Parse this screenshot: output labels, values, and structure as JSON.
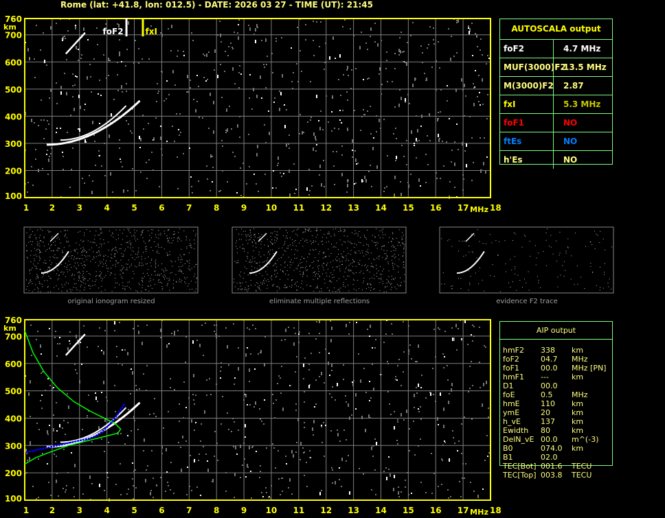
{
  "header": {
    "title": "Rome (lat: +41.8, lon: 012.5) - DATE: 2026 03 27 - TIME (UT): 21:45"
  },
  "ionogram": {
    "y_ticks": [
      "760",
      "700",
      "600",
      "500",
      "400",
      "300",
      "200",
      "100"
    ],
    "y_unit": "km",
    "x_ticks": [
      "1",
      "2",
      "3",
      "4",
      "5",
      "6",
      "7",
      "8",
      "9",
      "10",
      "11",
      "12",
      "13",
      "14",
      "15",
      "16",
      "17",
      "18"
    ],
    "x_unit": "MHz",
    "x_range": [
      1,
      18
    ],
    "y_range": [
      100,
      760
    ],
    "markers": {
      "foF2_label": "foF2",
      "foF2_value": 4.7,
      "fxI_label": "fxI",
      "fxI_value": 5.3
    }
  },
  "thumbnails": [
    {
      "caption": "original ionogram resized"
    },
    {
      "caption": "eliminate multiple reflections"
    },
    {
      "caption": "evidence F2 trace"
    }
  ],
  "autoscala": {
    "title": "AUTOSCALA output",
    "rows": [
      {
        "key": "foF2",
        "value": "4.7 MHz",
        "color": "#ffffff",
        "vcolor": "#ffffff"
      },
      {
        "key": "MUF(3000)F2",
        "value": "13.5 MHz",
        "color": "#ffff80",
        "vcolor": "#ffff80"
      },
      {
        "key": "M(3000)F2",
        "value": "2.87",
        "color": "#ffff80",
        "vcolor": "#ffff80"
      },
      {
        "key": "fxI",
        "value": "5.3 MHz",
        "color": "#ffff00",
        "vcolor": "#c8c800"
      },
      {
        "key": "foF1",
        "value": "NO",
        "color": "#ff0000",
        "vcolor": "#ff0000"
      },
      {
        "key": "ftEs",
        "value": "NO",
        "color": "#0080ff",
        "vcolor": "#0080ff"
      },
      {
        "key": "h'Es",
        "value": "NO",
        "color": "#ffff80",
        "vcolor": "#ffff80"
      }
    ]
  },
  "aip": {
    "title": "AIP output",
    "rows": [
      [
        "hmF2",
        "338",
        "km"
      ],
      [
        "foF2",
        "04.7",
        "MHz"
      ],
      [
        "foF1",
        "00.0",
        "MHz   [PN]"
      ],
      [
        "hmF1",
        "---",
        "km"
      ],
      [
        "D1",
        "00.0",
        ""
      ],
      [
        "foE",
        "0.5",
        "MHz"
      ],
      [
        "hmE",
        "110",
        "km"
      ],
      [
        "ymE",
        "20",
        "km"
      ],
      [
        "h_vE",
        "137",
        "km"
      ],
      [
        "Ewidth",
        "80",
        "km"
      ],
      [
        "DelN_vE",
        "00.0",
        "m^(-3)"
      ],
      [
        "B0",
        "074.0",
        "km"
      ],
      [
        "B1",
        "02.0",
        ""
      ],
      [
        "TEC[Bot]",
        "001.6",
        "TECU"
      ],
      [
        "TEC[Top]",
        "003.8",
        "TECU"
      ]
    ]
  },
  "colors": {
    "axis": "#ffff00",
    "grid": "#808080",
    "trace": "#ffffff",
    "profile": "#00ff00",
    "fit": "#0000ff",
    "table_border": "#80ff80"
  }
}
